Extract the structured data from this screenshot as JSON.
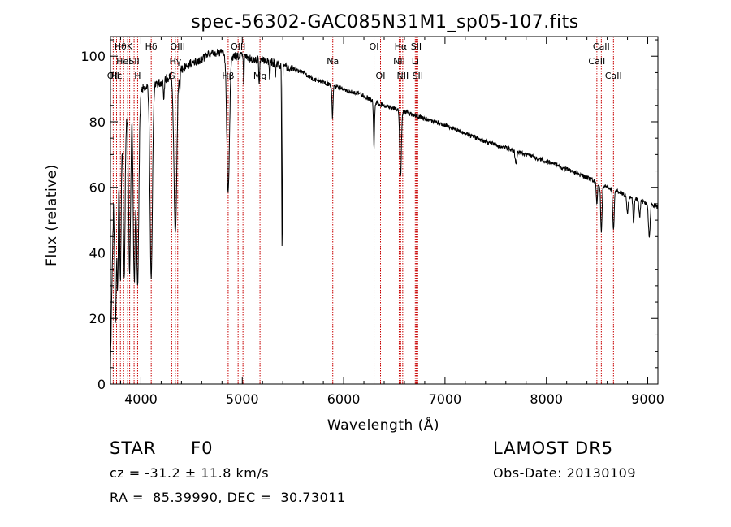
{
  "chart_data": {
    "type": "line",
    "title": "spec-56302-GAC085N31M1_sp05-107.fits",
    "xlabel": "Wavelength (Å)",
    "ylabel": "Flux (relative)",
    "xlim": [
      3700,
      9100
    ],
    "ylim": [
      0,
      106
    ],
    "xticks": [
      4000,
      5000,
      6000,
      7000,
      8000,
      9000
    ],
    "yticks": [
      0,
      20,
      40,
      60,
      80,
      100
    ],
    "continuum": [
      [
        3700,
        5
      ],
      [
        3730,
        55
      ],
      [
        3760,
        62
      ],
      [
        3800,
        72
      ],
      [
        3850,
        80
      ],
      [
        3900,
        86
      ],
      [
        3950,
        88
      ],
      [
        4000,
        90
      ],
      [
        4100,
        91
      ],
      [
        4200,
        92
      ],
      [
        4300,
        94
      ],
      [
        4400,
        96
      ],
      [
        4500,
        98
      ],
      [
        4600,
        99
      ],
      [
        4700,
        101
      ],
      [
        4800,
        101
      ],
      [
        4900,
        100
      ],
      [
        5000,
        100
      ],
      [
        5100,
        99
      ],
      [
        5200,
        99
      ],
      [
        5300,
        98
      ],
      [
        5400,
        97
      ],
      [
        5500,
        96
      ],
      [
        5600,
        95
      ],
      [
        5700,
        93
      ],
      [
        5800,
        92
      ],
      [
        5900,
        91
      ],
      [
        6000,
        90
      ],
      [
        6100,
        89
      ],
      [
        6200,
        88
      ],
      [
        6300,
        86
      ],
      [
        6400,
        85
      ],
      [
        6500,
        84
      ],
      [
        6600,
        83
      ],
      [
        6700,
        82
      ],
      [
        6800,
        81
      ],
      [
        6900,
        80
      ],
      [
        7000,
        79
      ],
      [
        7200,
        76.5
      ],
      [
        7400,
        74
      ],
      [
        7600,
        72
      ],
      [
        7800,
        70
      ],
      [
        8000,
        68
      ],
      [
        8200,
        65.5
      ],
      [
        8400,
        63
      ],
      [
        8600,
        60
      ],
      [
        8800,
        57.5
      ],
      [
        9000,
        55
      ],
      [
        9100,
        54
      ]
    ],
    "absorption_features": [
      [
        3750,
        40,
        8
      ],
      [
        3771,
        35,
        6
      ],
      [
        3798,
        40,
        7
      ],
      [
        3836,
        45,
        8
      ],
      [
        3889,
        50,
        10
      ],
      [
        3934,
        55,
        10
      ],
      [
        3968,
        58,
        12
      ],
      [
        4102,
        58,
        12
      ],
      [
        4227,
        6,
        4
      ],
      [
        4340,
        48,
        14
      ],
      [
        4384,
        6,
        4
      ],
      [
        4861,
        42,
        13
      ],
      [
        5015,
        10,
        3
      ],
      [
        5167,
        8,
        4
      ],
      [
        5270,
        6,
        4
      ],
      [
        5328,
        5,
        3
      ],
      [
        5393,
        58,
        4
      ],
      [
        5890,
        10,
        5
      ],
      [
        6300,
        14,
        5
      ],
      [
        6562,
        20,
        8
      ],
      [
        7700,
        4,
        8
      ],
      [
        8498,
        7,
        6
      ],
      [
        8542,
        14,
        7
      ],
      [
        8662,
        12,
        7
      ],
      [
        8800,
        5,
        8
      ],
      [
        8860,
        8,
        6
      ],
      [
        8920,
        5,
        6
      ],
      [
        9015,
        10,
        8
      ]
    ],
    "line_markers": [
      {
        "x": 3727,
        "labels": [
          "OII"
        ],
        "row": 2
      },
      {
        "x": 3760,
        "labels": [
          "Hε"
        ],
        "row": 2
      },
      {
        "x": 3798,
        "labels": [
          "Hθ"
        ],
        "row": 0
      },
      {
        "x": 3830,
        "labels": [
          "HeI"
        ],
        "row": 1
      },
      {
        "x": 3869,
        "labels": [],
        "row": 0
      },
      {
        "x": 3889,
        "labels": [
          "K"
        ],
        "row": 0
      },
      {
        "x": 3933,
        "labels": [
          "SII"
        ],
        "row": 1
      },
      {
        "x": 3968,
        "labels": [
          "H"
        ],
        "row": 2
      },
      {
        "x": 4102,
        "labels": [
          "Hδ"
        ],
        "row": 0
      },
      {
        "x": 4304,
        "labels": [
          "G"
        ],
        "row": 2
      },
      {
        "x": 4340,
        "labels": [
          "Hγ"
        ],
        "row": 1
      },
      {
        "x": 4363,
        "labels": [
          "OIII"
        ],
        "row": 0
      },
      {
        "x": 4861,
        "labels": [
          "Hβ"
        ],
        "row": 2
      },
      {
        "x": 4959,
        "labels": [
          "OIII"
        ],
        "row": 0
      },
      {
        "x": 5007,
        "labels": [],
        "row": 0
      },
      {
        "x": 5175,
        "labels": [
          "Mg"
        ],
        "row": 2
      },
      {
        "x": 5893,
        "labels": [
          "Na"
        ],
        "row": 1
      },
      {
        "x": 6300,
        "labels": [
          "OI"
        ],
        "row": 0
      },
      {
        "x": 6364,
        "labels": [
          "OI"
        ],
        "row": 2
      },
      {
        "x": 6548,
        "labels": [
          "NII"
        ],
        "row": 1
      },
      {
        "x": 6563,
        "labels": [
          "Hα"
        ],
        "row": 0
      },
      {
        "x": 6583,
        "labels": [
          "NII"
        ],
        "row": 2
      },
      {
        "x": 6707,
        "labels": [
          "Li"
        ],
        "row": 1
      },
      {
        "x": 6716,
        "labels": [
          "SII"
        ],
        "row": 0
      },
      {
        "x": 6731,
        "labels": [
          "SII"
        ],
        "row": 2
      },
      {
        "x": 8498,
        "labels": [
          "CaII"
        ],
        "row": 1
      },
      {
        "x": 8542,
        "labels": [
          "CaII"
        ],
        "row": 0
      },
      {
        "x": 8662,
        "labels": [
          "CaII"
        ],
        "row": 2
      }
    ],
    "colors": {
      "spectrum": "#000000",
      "marker": "#c80000",
      "marker_label": "#000000"
    },
    "grid": false,
    "legend": "none"
  },
  "info": {
    "class_label": "STAR",
    "subclass": "F0",
    "cz": "cz = -31.2 ± 11.8 km/s",
    "coords": "RA =  85.39990, DEC =  30.73011",
    "survey": "LAMOST DR5",
    "obs_date": "Obs-Date: 20130109"
  }
}
